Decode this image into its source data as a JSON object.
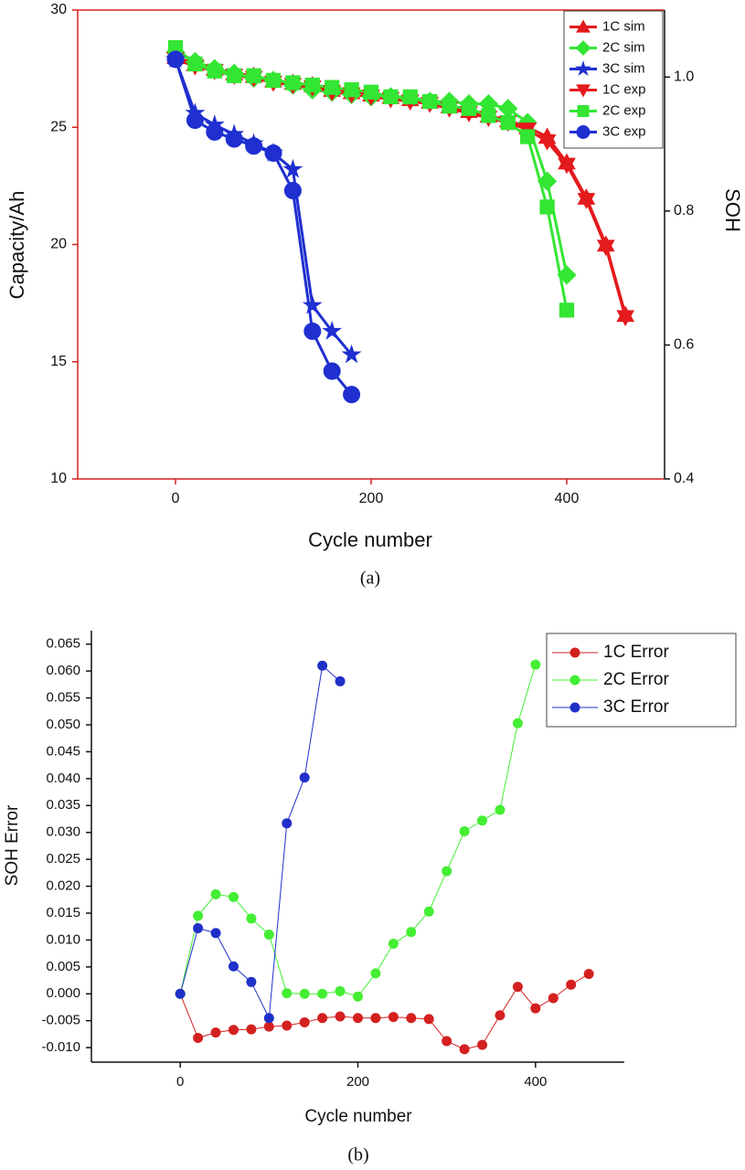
{
  "chart_data": [
    {
      "type": "line",
      "caption": "(a)",
      "x_label": "Cycle number",
      "y_label": "Capacity/Ah",
      "y2_label": "SOH",
      "xlim": [
        -100,
        500
      ],
      "xticks": [
        0,
        200,
        400
      ],
      "ylim": [
        10,
        30
      ],
      "yticks": [
        10,
        15,
        20,
        25,
        30
      ],
      "y2lim": [
        0.4,
        1.1
      ],
      "y2ticks": [
        0.4,
        0.6,
        0.8,
        {
          "value": 1,
          "label": "1.0"
        }
      ],
      "legend": "upper right",
      "grid": false,
      "series": [
        {
          "name": "1C sim",
          "color": "#e41a1c",
          "marker": "triangle-up",
          "x": [
            0,
            20,
            40,
            60,
            80,
            100,
            120,
            140,
            160,
            180,
            200,
            220,
            240,
            260,
            280,
            300,
            320,
            340,
            360,
            380,
            400,
            420,
            440,
            460
          ],
          "values": [
            28.0,
            27.7,
            27.5,
            27.3,
            27.2,
            27.0,
            26.9,
            26.8,
            26.6,
            26.5,
            26.4,
            26.3,
            26.2,
            26.1,
            25.9,
            25.7,
            25.5,
            25.3,
            25.0,
            24.6,
            23.5,
            22.0,
            20.0,
            17.0
          ]
        },
        {
          "name": "2C sim",
          "color": "#33e633",
          "marker": "diamond",
          "x": [
            0,
            20,
            40,
            60,
            80,
            100,
            120,
            140,
            160,
            180,
            200,
            220,
            240,
            260,
            280,
            300,
            320,
            340,
            360,
            380,
            400
          ],
          "values": [
            28.2,
            27.8,
            27.5,
            27.3,
            27.1,
            27.0,
            26.8,
            26.6,
            26.5,
            26.4,
            26.3,
            26.3,
            26.2,
            26.1,
            26.1,
            26.0,
            26.0,
            25.8,
            25.2,
            22.7,
            18.7
          ]
        },
        {
          "name": "3C sim",
          "color": "#1f2fd0",
          "marker": "star",
          "x": [
            0,
            20,
            40,
            60,
            80,
            100,
            120,
            140,
            160,
            180
          ],
          "values": [
            27.9,
            25.6,
            25.1,
            24.7,
            24.3,
            23.9,
            23.2,
            17.4,
            16.3,
            15.3
          ]
        },
        {
          "name": "1C exp",
          "color": "#e41a1c",
          "marker": "triangle-down",
          "x": [
            0,
            20,
            40,
            60,
            80,
            100,
            120,
            140,
            160,
            180,
            200,
            220,
            240,
            260,
            280,
            300,
            320,
            340,
            360,
            380,
            400,
            420,
            440,
            460
          ],
          "values": [
            27.9,
            27.6,
            27.4,
            27.2,
            27.1,
            26.9,
            26.8,
            26.7,
            26.5,
            26.4,
            26.3,
            26.2,
            26.1,
            26.0,
            25.8,
            25.6,
            25.4,
            25.2,
            24.9,
            24.4,
            23.4,
            21.9,
            19.9,
            16.9
          ]
        },
        {
          "name": "2C exp",
          "color": "#33e633",
          "marker": "square",
          "x": [
            0,
            20,
            40,
            60,
            80,
            100,
            120,
            140,
            160,
            180,
            200,
            220,
            240,
            260,
            280,
            300,
            320,
            340,
            360,
            380,
            400
          ],
          "values": [
            28.4,
            27.7,
            27.4,
            27.2,
            27.2,
            27.0,
            26.9,
            26.8,
            26.7,
            26.6,
            26.5,
            26.3,
            26.3,
            26.1,
            25.9,
            25.8,
            25.5,
            25.2,
            24.6,
            21.6,
            17.2
          ]
        },
        {
          "name": "3C exp",
          "color": "#1f2fd0",
          "marker": "circle",
          "x": [
            0,
            20,
            40,
            60,
            80,
            100,
            120,
            140,
            160,
            180
          ],
          "values": [
            27.9,
            25.3,
            24.8,
            24.5,
            24.2,
            23.9,
            22.3,
            16.3,
            14.6,
            13.6
          ]
        }
      ]
    },
    {
      "type": "line",
      "caption": "(b)",
      "x_label": "Cycle number",
      "y_label": "SOH Error",
      "xlim": [
        -100,
        500
      ],
      "xticks": [
        0,
        200,
        400
      ],
      "ylim": [
        -0.0127,
        0.0675
      ],
      "yticks": [
        {
          "value": -0.01,
          "label": "-0.010"
        },
        -0.005,
        {
          "value": 0,
          "label": "0.000"
        },
        0.005,
        {
          "value": 0.01,
          "label": "0.010"
        },
        0.015,
        {
          "value": 0.02,
          "label": "0.020"
        },
        0.025,
        {
          "value": 0.03,
          "label": "0.030"
        },
        0.035,
        {
          "value": 0.04,
          "label": "0.040"
        },
        0.045,
        {
          "value": 0.05,
          "label": "0.050"
        },
        0.055,
        {
          "value": 0.06,
          "label": "0.060"
        },
        0.065
      ],
      "legend": "upper right",
      "grid": false,
      "series": [
        {
          "name": "1C Error",
          "color": "#d42020",
          "marker": "circle",
          "x": [
            0,
            20,
            40,
            60,
            80,
            100,
            120,
            140,
            160,
            180,
            200,
            220,
            240,
            260,
            280,
            300,
            320,
            340,
            360,
            380,
            400,
            420,
            440,
            460
          ],
          "values": [
            0,
            -0.0082,
            -0.0072,
            -0.0067,
            -0.0066,
            -0.0061,
            -0.0059,
            -0.0053,
            -0.0045,
            -0.0042,
            -0.0045,
            -0.0045,
            -0.0043,
            -0.0045,
            -0.0047,
            -0.0088,
            -0.0103,
            -0.0095,
            -0.004,
            0.0013,
            -0.0027,
            -0.0008,
            0.0017,
            0.0037
          ]
        },
        {
          "name": "2C Error",
          "color": "#44ee33",
          "marker": "circle",
          "x": [
            0,
            20,
            40,
            60,
            80,
            100,
            120,
            140,
            160,
            180,
            200,
            220,
            240,
            260,
            280,
            300,
            320,
            340,
            360,
            380,
            400
          ],
          "values": [
            0,
            0.0145,
            0.0185,
            0.018,
            0.014,
            0.011,
            0.0001,
            0,
            0,
            0.0005,
            -0.0005,
            0.0038,
            0.0093,
            0.0115,
            0.0153,
            0.0228,
            0.0302,
            0.0322,
            0.0342,
            0.0503,
            0.0612
          ]
        },
        {
          "name": "3C Error",
          "color": "#1f2fc8",
          "marker": "circle",
          "x": [
            0,
            20,
            40,
            60,
            80,
            100,
            120,
            140,
            160,
            180
          ],
          "values": [
            0,
            0.0122,
            0.0113,
            0.0051,
            0.0022,
            -0.0045,
            0.0317,
            0.0402,
            0.061,
            0.0581
          ]
        }
      ]
    }
  ]
}
